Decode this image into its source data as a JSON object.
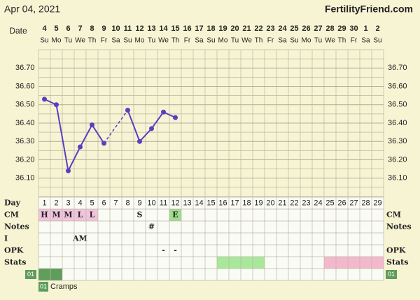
{
  "header": {
    "date": "Apr 04, 2021",
    "site": "FertilityFriend.com"
  },
  "chart_data": {
    "type": "line",
    "x_label": "Date",
    "categories": [
      "4",
      "5",
      "6",
      "7",
      "8",
      "9",
      "10",
      "11",
      "12",
      "13",
      "14",
      "15",
      "16",
      "17",
      "18",
      "19",
      "20",
      "21",
      "22",
      "23",
      "24",
      "25",
      "26",
      "27",
      "28",
      "29",
      "30",
      "1",
      "2"
    ],
    "weekdays": [
      "Su",
      "Mo",
      "Tu",
      "We",
      "Th",
      "Fr",
      "Sa",
      "Su",
      "Mo",
      "Tu",
      "We",
      "Th",
      "Fr",
      "Sa",
      "Su",
      "Mo",
      "Tu",
      "We",
      "Th",
      "Fr",
      "Sa",
      "Su",
      "Mo",
      "Tu",
      "We",
      "Th",
      "Fr",
      "Sa",
      "Su"
    ],
    "values": [
      36.53,
      36.5,
      36.14,
      36.27,
      36.39,
      36.29,
      null,
      36.47,
      36.3,
      36.37,
      36.46,
      36.43,
      null,
      null,
      null,
      null,
      null,
      null,
      null,
      null,
      null,
      null,
      null,
      null,
      null,
      null,
      null,
      null,
      null
    ],
    "color": "#5b3fbf",
    "ylim": [
      36.0,
      36.8
    ],
    "yticks": [
      {
        "value": 36.1,
        "label": "36.10"
      },
      {
        "value": 36.2,
        "label": "36.20"
      },
      {
        "value": 36.3,
        "label": "36.30"
      },
      {
        "value": 36.4,
        "label": "36.40"
      },
      {
        "value": 36.5,
        "label": "36.50"
      },
      {
        "value": 36.6,
        "label": "36.60"
      },
      {
        "value": 36.7,
        "label": "36.70"
      }
    ],
    "grid": true
  },
  "table": {
    "day_label": "Day",
    "days": [
      1,
      2,
      3,
      4,
      5,
      6,
      7,
      8,
      9,
      10,
      11,
      12,
      13,
      14,
      15,
      16,
      17,
      18,
      19,
      20,
      21,
      22,
      23,
      24,
      25,
      26,
      27,
      28,
      29
    ],
    "rows": [
      {
        "label": "CM",
        "mirror": true,
        "entries": [
          {
            "day": 1,
            "text": "H",
            "color": "#f2c4dc"
          },
          {
            "day": 2,
            "text": "M",
            "color": "#f2c4dc"
          },
          {
            "day": 3,
            "text": "M",
            "color": "#f2c4dc"
          },
          {
            "day": 4,
            "text": "L",
            "color": "#f2c4dc"
          },
          {
            "day": 5,
            "text": "L",
            "color": "#f2c4dc"
          },
          {
            "day": 9,
            "text": "S"
          },
          {
            "day": 12,
            "text": "E",
            "color": "#9fdc8c"
          }
        ]
      },
      {
        "label": "Notes",
        "mirror": true,
        "entries": [
          {
            "day": 10,
            "text": "#"
          }
        ]
      },
      {
        "label": "I",
        "mirror": false,
        "entries": [
          {
            "day": 4,
            "text": "AM"
          }
        ]
      },
      {
        "label": "OPK",
        "mirror": true,
        "entries": [
          {
            "day": 11,
            "text": "-"
          },
          {
            "day": 12,
            "text": "-"
          }
        ]
      },
      {
        "label": "Stats",
        "mirror": true,
        "entries": [],
        "spans": [
          {
            "from": 16,
            "to": 19,
            "color": "#a8e89a"
          },
          {
            "from": 25,
            "to": 29,
            "color": "#f4b8cc"
          }
        ]
      }
    ],
    "symptom": {
      "code": "01",
      "label": "Cramps",
      "days": [
        1,
        2
      ],
      "color": "#5f9d5c"
    }
  }
}
